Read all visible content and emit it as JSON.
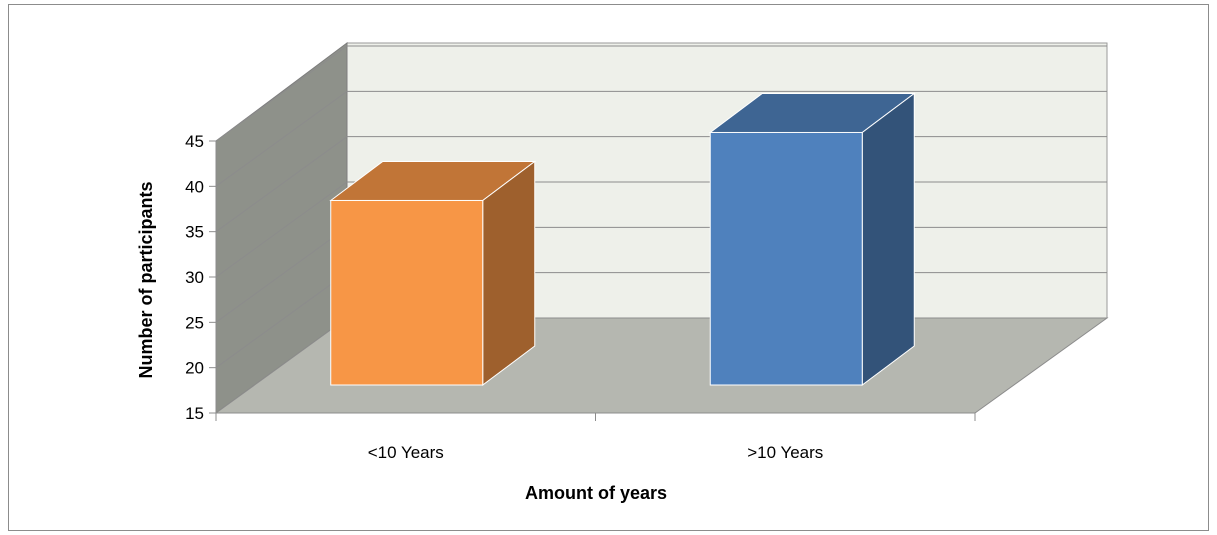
{
  "chart_data": {
    "type": "bar",
    "title": "",
    "xlabel": "Amount of years",
    "ylabel": "Number of participants",
    "categories": [
      "<10 Years",
      ">10 Years"
    ],
    "values": [
      38,
      45.5
    ],
    "ylim": [
      15,
      45
    ],
    "yticks": [
      15,
      20,
      25,
      30,
      35,
      40,
      45
    ],
    "grid": true,
    "legend": "none",
    "style": "3d-column",
    "colors": {
      "bars": [
        "#f79646",
        "#4f81bd"
      ],
      "back_wall": "#eef0ea",
      "side_wall": "#8e918a",
      "floor": "#b5b7b0",
      "gridline": "#8c8c8c"
    }
  }
}
